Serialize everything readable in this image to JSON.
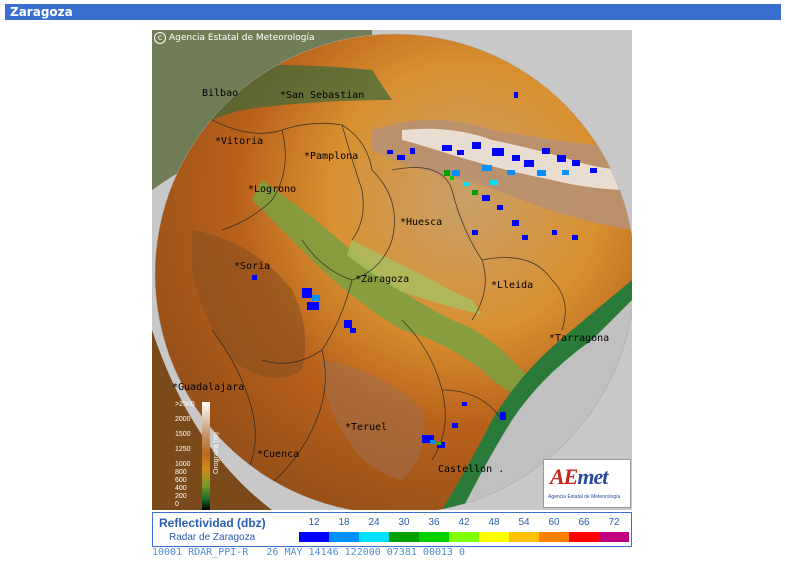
{
  "page": {
    "title": "Zaragoza"
  },
  "map": {
    "copyright": "Agencia Estatal de Meteorología",
    "cities": [
      {
        "name": "Bilbao",
        "label": "Bilbao"
      },
      {
        "name": "San Sebastian",
        "label": "*San Sebastian"
      },
      {
        "name": "Vitoria",
        "label": "*Vitoria"
      },
      {
        "name": "Pamplona",
        "label": "*Pamplona"
      },
      {
        "name": "Logrono",
        "label": "*Logrono"
      },
      {
        "name": "Huesca",
        "label": "*Huesca"
      },
      {
        "name": "Soria",
        "label": "*Soria"
      },
      {
        "name": "Zaragoza",
        "label": "*Zaragoza"
      },
      {
        "name": "Lleida",
        "label": "*Lleida"
      },
      {
        "name": "Tarragona",
        "label": "*Tarragona"
      },
      {
        "name": "Guadalajara",
        "label": "*Guadalajara"
      },
      {
        "name": "Teruel",
        "label": "*Teruel"
      },
      {
        "name": "Cuenca",
        "label": "*Cuenca"
      },
      {
        "name": "Castellon",
        "label": "Castellon ."
      }
    ],
    "orography": {
      "ticks": [
        ">2500",
        "2000",
        "1500",
        "1250",
        "1000",
        "800",
        "600",
        "400",
        "200",
        "0"
      ],
      "unit": "Orografía (m)"
    },
    "logo": {
      "word_a": "AE",
      "word_b": "met",
      "subtitle": "Agencia Estatal de Meteorología"
    }
  },
  "legend": {
    "title": "Reflectividad (dbz)",
    "subtitle": "Radar de Zaragoza",
    "levels": [
      "12",
      "18",
      "24",
      "30",
      "36",
      "42",
      "48",
      "54",
      "60",
      "66",
      "72"
    ],
    "colors": [
      "#0000ff",
      "#0090ff",
      "#00e0ff",
      "#00a000",
      "#00d000",
      "#80ff00",
      "#ffff00",
      "#ffc000",
      "#ff8000",
      "#ff0000",
      "#c00080"
    ]
  },
  "status": "10001 RDAR_PPI-R   26 MAY 14146 122000 07381 00013 0"
}
